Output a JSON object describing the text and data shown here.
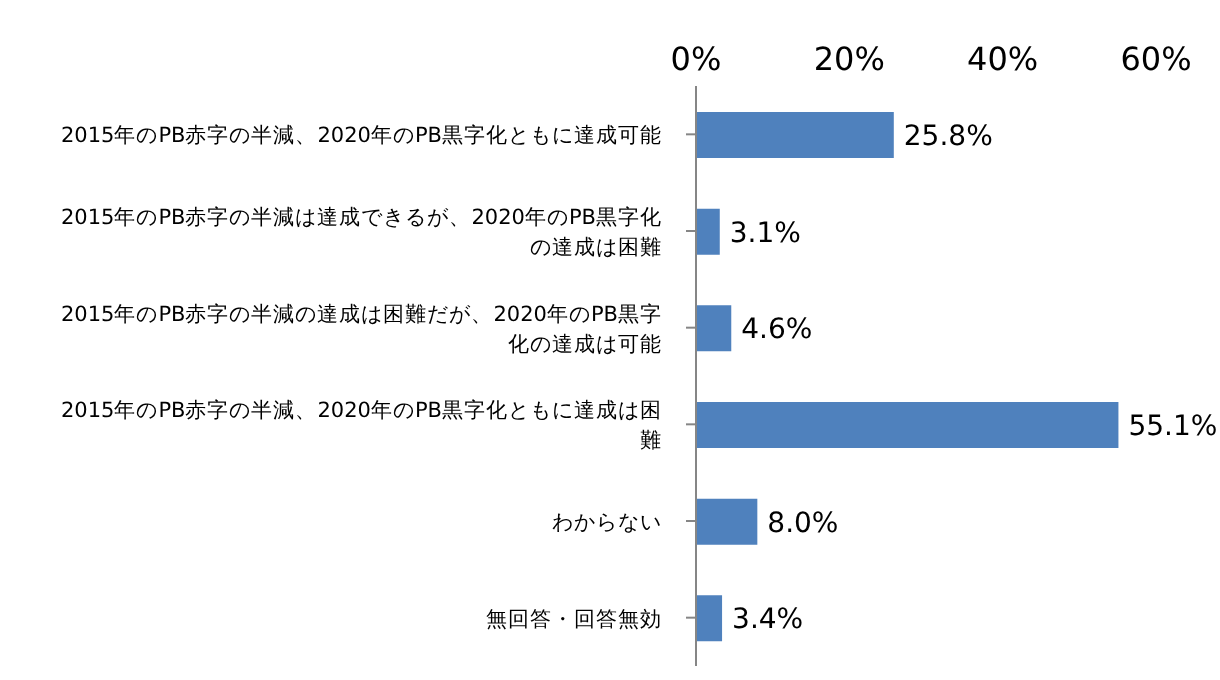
{
  "chart_data": {
    "type": "bar",
    "orientation": "horizontal",
    "categories": [
      "2015年のPB赤字の半減、2020年のPB黒字化ともに達成可能",
      "2015年のPB赤字の半減は達成できるが、2020年のPB黒字化の達成は困難",
      "2015年のPB赤字の半減の達成は困難だが、2020年のPB黒字化の達成は可能",
      "2015年のPB赤字の半減、2020年のPB黒字化ともに達成は困難",
      "わからない",
      "無回答・回答無効"
    ],
    "values": [
      25.8,
      3.1,
      4.6,
      55.1,
      8.0,
      3.4
    ],
    "value_labels": [
      "25.8%",
      "3.1%",
      "4.6%",
      "55.1%",
      "8.0%",
      "3.4%"
    ],
    "color": "#4f81bd",
    "xlim": [
      0,
      60
    ],
    "xticks": [
      {
        "value": 0,
        "label": "0%"
      },
      {
        "value": 20,
        "label": "20%"
      },
      {
        "value": 40,
        "label": "40%"
      },
      {
        "value": 60,
        "label": "60%"
      }
    ],
    "grid": false,
    "legend": false
  }
}
